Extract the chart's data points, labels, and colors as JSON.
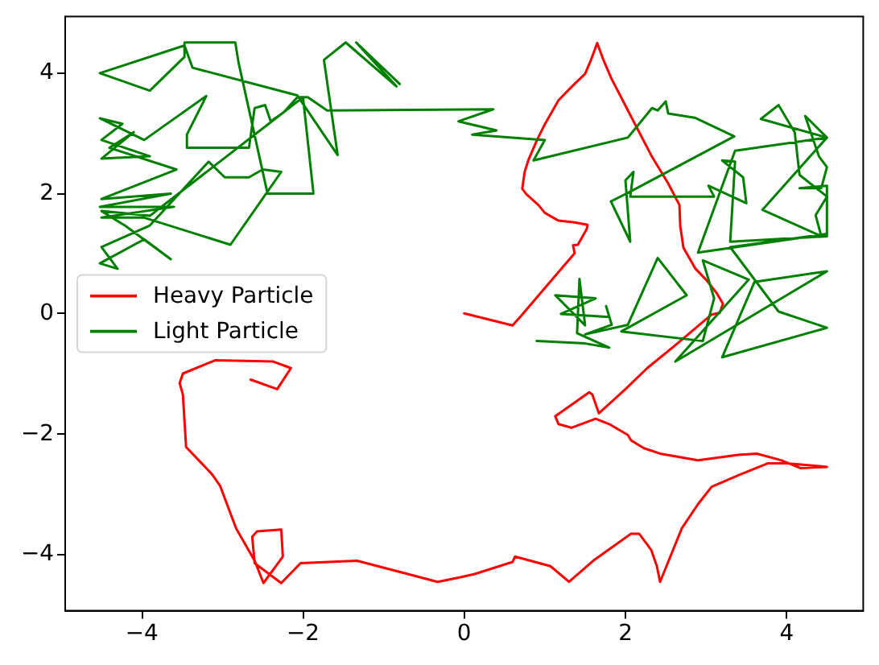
{
  "chart_data": {
    "type": "line",
    "legend": "left",
    "marker": "none",
    "xlim": [
      -4.95,
      4.95
    ],
    "ylim": [
      -4.94,
      4.93
    ],
    "xticks": [
      {
        "value": -4,
        "label": "−4"
      },
      {
        "value": -2,
        "label": "−2"
      },
      0,
      2,
      4
    ],
    "yticks": [
      {
        "value": -4,
        "label": "−4"
      },
      {
        "value": -2,
        "label": "−2"
      },
      0,
      2,
      4
    ],
    "series": [
      {
        "name": "Heavy Particle",
        "color": "#ff0000",
        "x": [
          0,
          0.15,
          0.6,
          0.7,
          1.37,
          1.35,
          1.41,
          1.52,
          1.53,
          1.37,
          1.17,
          1.0,
          0.92,
          0.77,
          0.72,
          0.75,
          0.8,
          0.9,
          1.0,
          1.17,
          1.33,
          1.5,
          1.57,
          1.65,
          1.73,
          1.83,
          2.07,
          2.33,
          2.53,
          2.67,
          2.68,
          2.72,
          2.87,
          3.0,
          3.13,
          3.21,
          3.17,
          3.07,
          2.6,
          2.27,
          2.0,
          1.67,
          1.59,
          1.55,
          1.13,
          1.17,
          1.33,
          1.63,
          1.8,
          2.03,
          2.07,
          2.23,
          2.43,
          2.9,
          3.4,
          3.63,
          3.93,
          4.17,
          4.5,
          4.0,
          3.77,
          3.4,
          3.07,
          2.9,
          2.7,
          2.43,
          2.39,
          2.32,
          2.17,
          2.07,
          1.6,
          1.3,
          1.07,
          0.63,
          0.6,
          0.13,
          -0.07,
          -0.33,
          -1.33,
          -2.03,
          -2.27,
          -2.6,
          -2.63,
          -2.57,
          -2.27,
          -2.25,
          -2.49,
          -2.6,
          -2.83,
          -3.03,
          -3.13,
          -3.45,
          -3.49,
          -3.53,
          -3.49,
          -3.09,
          -2.37,
          -2.15,
          -2.32,
          -2.65
        ],
        "values": [
          0,
          -0.05,
          -0.2,
          -0.05,
          1.0,
          1.13,
          1.14,
          1.4,
          1.47,
          1.51,
          1.54,
          1.67,
          1.8,
          1.98,
          2.07,
          2.35,
          2.56,
          2.87,
          3.14,
          3.54,
          3.76,
          3.98,
          4.2,
          4.49,
          4.2,
          3.89,
          3.27,
          2.6,
          2.16,
          1.8,
          1.45,
          1.09,
          0.74,
          0.56,
          0.34,
          0.16,
          0.01,
          -0.02,
          -0.55,
          -0.91,
          -1.26,
          -1.66,
          -1.35,
          -1.31,
          -1.71,
          -1.84,
          -1.9,
          -1.75,
          -1.84,
          -2.02,
          -2.11,
          -2.24,
          -2.33,
          -2.44,
          -2.35,
          -2.33,
          -2.44,
          -2.57,
          -2.55,
          -2.49,
          -2.49,
          -2.69,
          -2.88,
          -3.17,
          -3.57,
          -4.46,
          -4.2,
          -3.93,
          -3.66,
          -3.66,
          -4.11,
          -4.46,
          -4.2,
          -4.04,
          -4.13,
          -4.33,
          -4.39,
          -4.46,
          -4.11,
          -4.15,
          -4.48,
          -4.15,
          -3.71,
          -3.62,
          -3.59,
          -4.04,
          -4.48,
          -4.11,
          -3.57,
          -2.86,
          -2.67,
          -2.22,
          -1.35,
          -1.16,
          -1.0,
          -0.78,
          -0.8,
          -0.91,
          -1.26,
          -1.1
        ]
      },
      {
        "name": "Light Particle",
        "color": "#008000",
        "x": [
          0.9,
          1.5,
          1.8,
          1.4,
          1.43,
          1.5,
          1.13,
          1.63,
          1.2,
          1.8,
          1.76,
          1.83,
          1.5,
          2.03,
          2.4,
          2.76,
          1.95,
          2.96,
          3.1,
          2.96,
          3.53,
          2.62,
          4.5,
          3.6,
          3.2,
          4.5,
          3.9,
          3.3,
          4.5,
          2.9,
          3.36,
          4.5,
          3.7,
          4.43,
          4.36,
          4.5,
          4.16,
          4.1,
          3.9,
          3.68,
          4.5,
          4.23,
          4.4,
          4.5,
          4.43,
          4.16,
          4.5,
          4.5,
          3.3,
          3.36,
          3.2,
          3.46,
          3.5,
          3.03,
          3.1,
          2.06,
          2.1,
          2.0,
          2.06,
          1.82,
          2.03,
          3.35,
          2.86,
          2.53,
          2.5,
          2.4,
          2.33,
          2.03,
          0.86,
          1.0,
          0.1,
          0.4,
          -0.07,
          0.36,
          -1.7,
          -1.94,
          -2.07,
          -2.24,
          -2.4,
          -2.47,
          -2.6,
          -2.67,
          -3.44,
          -3.44,
          -3.2,
          -3.97,
          -4.52,
          -4.24,
          -4.5,
          -3.9,
          -4.5,
          -4.1,
          -4.4,
          -3.57,
          -4.5,
          -3.64,
          -4.52,
          -3.6,
          -4.5,
          -3.97,
          -2.9,
          -2.27,
          -2.5,
          -2.67,
          -2.97,
          -3.17,
          -3.9,
          -4.5,
          -4.3,
          -4.52,
          -3.97,
          -3.64,
          -4.2,
          -4.5,
          -3.9,
          -2.0,
          -1.87,
          -2.44,
          -2.8,
          -2.84,
          -3.47,
          -3.47,
          -3.9,
          -4.52,
          -3.47,
          -3.37,
          -2.07,
          -1.57,
          -1.74,
          -1.47,
          -0.84,
          -1.34,
          -0.8
        ],
        "values": [
          -0.46,
          -0.5,
          -0.57,
          -0.33,
          0.57,
          -0.2,
          0.3,
          0.25,
          -0.01,
          -0.06,
          0.12,
          -0.19,
          -0.35,
          -0.19,
          0.92,
          0.3,
          -0.3,
          -0.46,
          0.25,
          0.88,
          0.56,
          -0.8,
          0.7,
          0.52,
          -0.73,
          -0.24,
          0.03,
          1.1,
          1.32,
          1.01,
          2.7,
          2.92,
          1.72,
          1.28,
          1.63,
          1.94,
          2.3,
          3.01,
          3.46,
          3.23,
          2.92,
          3.28,
          2.61,
          2.43,
          2.08,
          2.08,
          2.12,
          1.28,
          1.19,
          2.52,
          2.54,
          2.26,
          1.83,
          2.12,
          1.94,
          1.94,
          2.35,
          2.21,
          1.19,
          1.86,
          2.0,
          2.94,
          3.25,
          3.32,
          3.52,
          3.37,
          3.41,
          2.92,
          2.54,
          2.88,
          2.97,
          3.04,
          3.19,
          3.39,
          3.37,
          3.59,
          3.59,
          3.34,
          3.19,
          3.46,
          3.41,
          2.75,
          2.75,
          2.97,
          3.61,
          2.88,
          3.24,
          3.15,
          2.88,
          2.61,
          2.57,
          3.01,
          2.75,
          2.39,
          1.9,
          1.99,
          1.77,
          1.77,
          1.59,
          1.59,
          1.14,
          2.35,
          2.39,
          2.26,
          2.26,
          2.52,
          1.46,
          1.1,
          0.74,
          0.83,
          1.23,
          0.9,
          1.45,
          1.7,
          1.62,
          3.59,
          1.99,
          1.99,
          4.17,
          4.5,
          4.5,
          4.26,
          3.7,
          3.99,
          4.45,
          4.08,
          3.62,
          2.63,
          4.21,
          4.5,
          3.77,
          4.5,
          3.81
        ]
      }
    ]
  }
}
